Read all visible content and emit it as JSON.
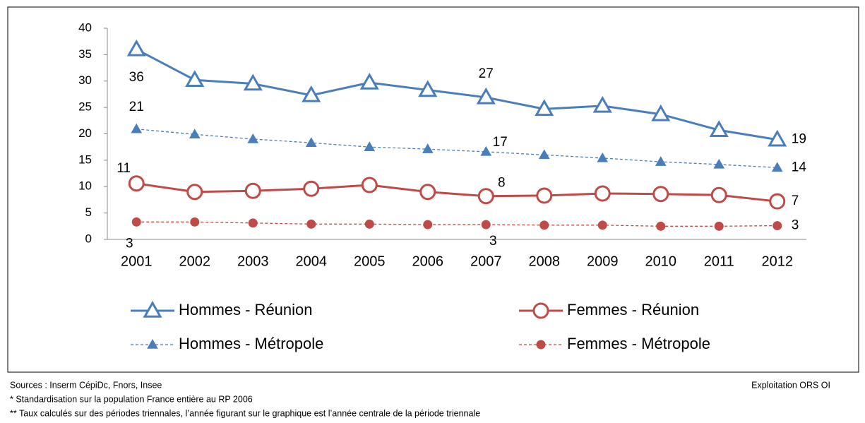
{
  "chart_data": {
    "type": "line",
    "categories": [
      "2001",
      "2002",
      "2003",
      "2004",
      "2005",
      "2006",
      "2007",
      "2008",
      "2009",
      "2010",
      "2011",
      "2012"
    ],
    "ylim": [
      0,
      40
    ],
    "yticks": [
      0,
      5,
      10,
      15,
      20,
      25,
      30,
      35,
      40
    ],
    "grid": false,
    "legend": "bottom",
    "series": [
      {
        "name": "Hommes - Réunion",
        "color": "#4a7ebb",
        "marker": "triangle",
        "filled": false,
        "dashed": false,
        "values": [
          36,
          30.2,
          29.5,
          27.3,
          29.7,
          28.3,
          26.9,
          24.7,
          25.3,
          23.7,
          20.7,
          18.9
        ],
        "value_labels": [
          "36",
          null,
          null,
          null,
          null,
          null,
          "27",
          null,
          null,
          null,
          null,
          "19"
        ]
      },
      {
        "name": "Hommes - Métropole",
        "color": "#4a7ebb",
        "marker": "triangle",
        "filled": true,
        "dashed": true,
        "values": [
          20.9,
          19.9,
          19.0,
          18.3,
          17.5,
          17.1,
          16.6,
          16.0,
          15.4,
          14.7,
          14.2,
          13.6
        ],
        "value_labels": [
          "21",
          null,
          null,
          null,
          null,
          null,
          "17",
          null,
          null,
          null,
          null,
          "14"
        ]
      },
      {
        "name": "Femmes - Réunion",
        "color": "#be4b48",
        "marker": "circle",
        "filled": false,
        "dashed": false,
        "values": [
          10.6,
          9.0,
          9.2,
          9.6,
          10.3,
          9.0,
          8.2,
          8.3,
          8.7,
          8.6,
          8.4,
          7.2
        ],
        "value_labels": [
          "11",
          null,
          null,
          null,
          null,
          null,
          "8",
          null,
          null,
          null,
          null,
          "7"
        ]
      },
      {
        "name": "Femmes - Métropole",
        "color": "#be4b48",
        "marker": "circle",
        "filled": true,
        "dashed": true,
        "values": [
          3.3,
          3.3,
          3.1,
          2.9,
          2.9,
          2.8,
          2.8,
          2.7,
          2.7,
          2.5,
          2.5,
          2.6
        ],
        "value_labels": [
          "3",
          null,
          null,
          null,
          null,
          null,
          "3",
          null,
          null,
          null,
          null,
          "3"
        ]
      }
    ]
  },
  "footer": {
    "sources": "Sources : Inserm CépiDc, Fnors, Insee",
    "note1": "* Standardisation sur la population France entière au RP 2006",
    "note2": "** Taux calculés sur des périodes triennales, l’année figurant sur le graphique est l’année centrale de la période triennale",
    "credit": "Exploitation ORS OI"
  }
}
